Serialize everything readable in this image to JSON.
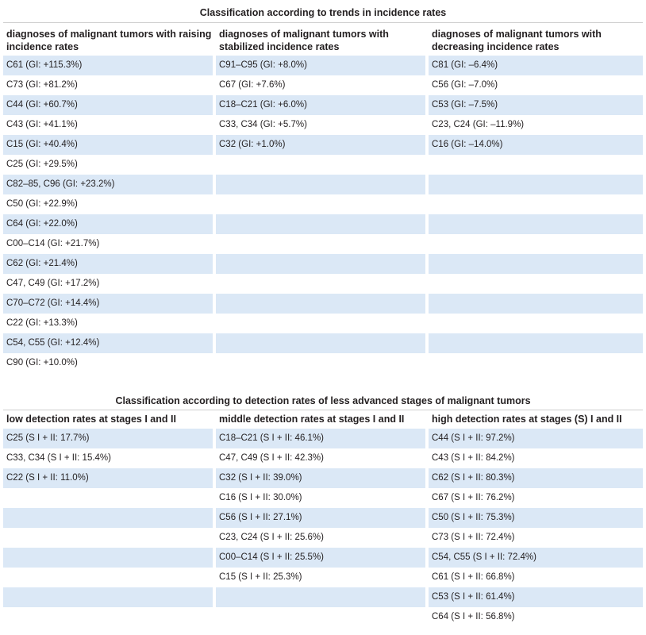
{
  "table1": {
    "title": "Classification according to trends in incidence rates",
    "headers": [
      "diagnoses of malignant tumors with raising incidence rates",
      "diagnoses of malignant tumors with stabilized incidence rates",
      "diagnoses of malignant tumors with decreasing incidence rates"
    ],
    "rows": [
      [
        "C61 (GI: +115.3%)",
        "C91–C95 (GI: +8.0%)",
        "C81 (GI: –6.4%)"
      ],
      [
        "C73 (GI: +81.2%)",
        "C67 (GI: +7.6%)",
        "C56 (GI: –7.0%)"
      ],
      [
        "C44 (GI: +60.7%)",
        "C18–C21 (GI: +6.0%)",
        "C53 (GI: –7.5%)"
      ],
      [
        "C43 (GI: +41.1%)",
        "C33, C34 (GI: +5.7%)",
        "C23, C24 (GI: –11.9%)"
      ],
      [
        "C15 (GI: +40.4%)",
        "C32 (GI: +1.0%)",
        "C16 (GI: –14.0%)"
      ],
      [
        "C25 (GI: +29.5%)",
        "",
        ""
      ],
      [
        "C82–85, C96 (GI: +23.2%)",
        "",
        ""
      ],
      [
        "C50 (GI: +22.9%)",
        "",
        ""
      ],
      [
        "C64 (GI: +22.0%)",
        "",
        ""
      ],
      [
        "C00–C14 (GI: +21.7%)",
        "",
        ""
      ],
      [
        "C62 (GI: +21.4%)",
        "",
        ""
      ],
      [
        "C47, C49 (GI: +17.2%)",
        "",
        ""
      ],
      [
        "C70–C72 (GI: +14.4%)",
        "",
        ""
      ],
      [
        "C22 (GI: +13.3%)",
        "",
        ""
      ],
      [
        "C54, C55 (GI: +12.4%)",
        "",
        ""
      ],
      [
        "C90 (GI: +10.0%)",
        "",
        ""
      ]
    ]
  },
  "table2": {
    "title": "Classification according to detection rates of less advanced stages of malignant tumors",
    "headers": [
      "low detection rates at stages I and II",
      "middle detection rates at stages I and II",
      "high detection rates at stages (S) I and II"
    ],
    "rows": [
      [
        "C25 (S I + II: 17.7%)",
        "C18–C21 (S I + II: 46.1%)",
        "C44 (S I + II: 97.2%)"
      ],
      [
        "C33, C34 (S I + II: 15.4%)",
        "C47, C49 (S I + II: 42.3%)",
        "C43 (S I + II: 84.2%)"
      ],
      [
        "C22 (S I + II: 11.0%)",
        "C32 (S I + II: 39.0%)",
        "C62 (S I + II: 80.3%)"
      ],
      [
        "",
        "C16 (S I + II: 30.0%)",
        "C67 (S I + II: 76.2%)"
      ],
      [
        "",
        "C56 (S I + II: 27.1%)",
        "C50 (S I + II: 75.3%)"
      ],
      [
        "",
        "C23, C24 (S I + II: 25.6%)",
        "C73 (S I + II: 72.4%)"
      ],
      [
        "",
        "C00–C14 (S I + II: 25.5%)",
        "C54, C55 (S I + II: 72.4%)"
      ],
      [
        "",
        "C15 (S I + II: 25.3%)",
        "C61 (S I + II: 66.8%)"
      ],
      [
        "",
        "",
        "C53 (S I + II: 61.4%)"
      ],
      [
        "",
        "",
        "C64 (S I + II: 56.8%)"
      ]
    ]
  },
  "colors": {
    "row_shade": "#dbe8f6",
    "text": "#231f20",
    "rule": "#cfcfcf"
  }
}
